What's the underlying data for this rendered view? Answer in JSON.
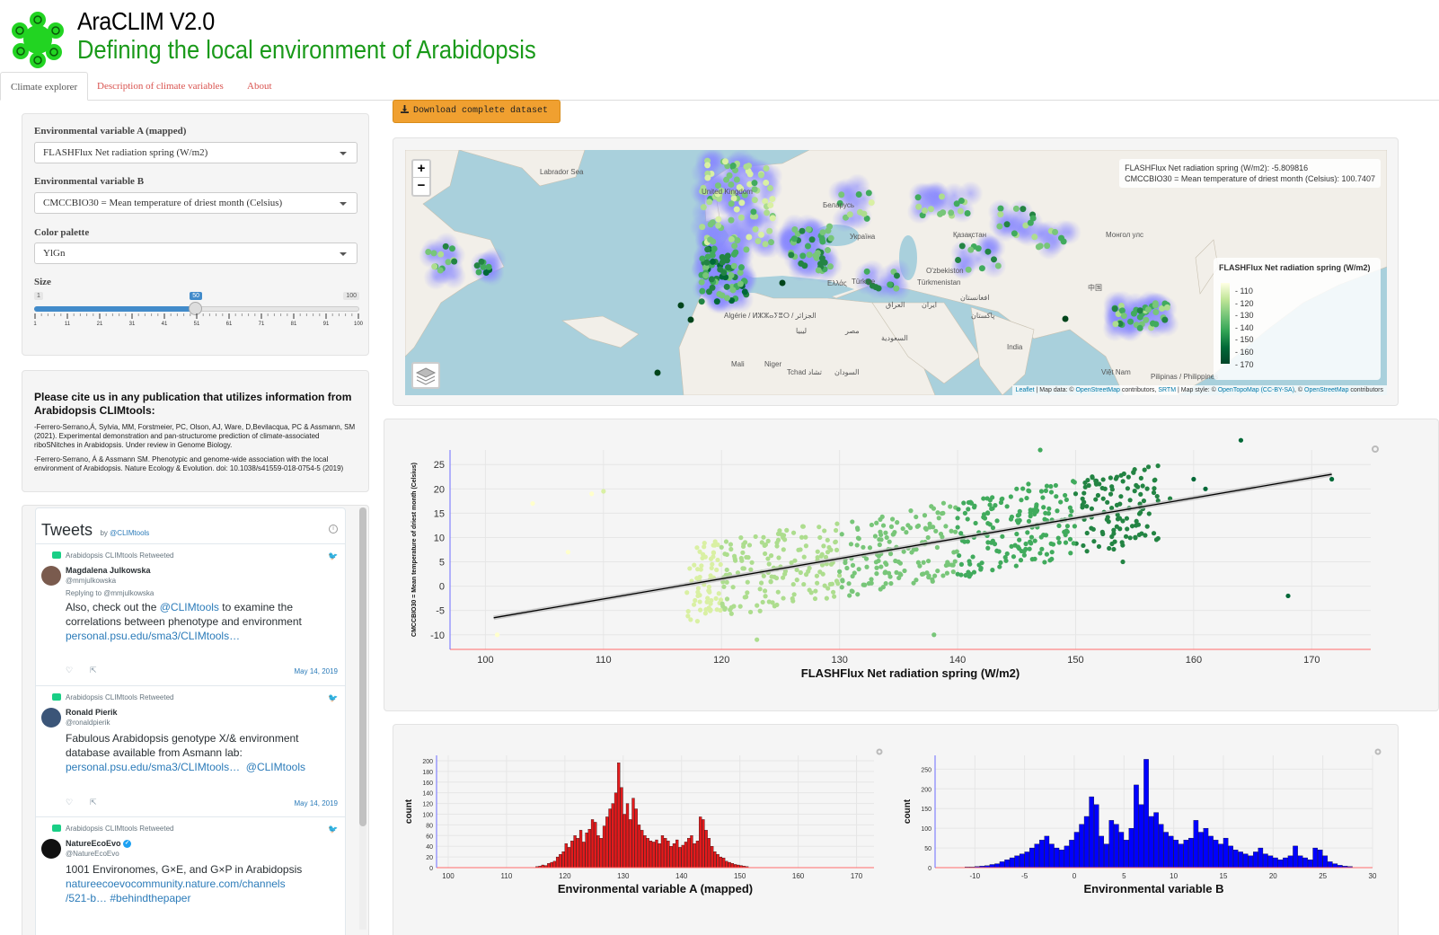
{
  "header": {
    "title": "AraCLIM V2.0",
    "subtitle": "Defining the local environment of Arabidopsis"
  },
  "tabs": [
    {
      "label": "Climate explorer",
      "active": true
    },
    {
      "label": "Description of climate variables",
      "active": false
    },
    {
      "label": "About",
      "active": false
    }
  ],
  "controls": {
    "var_a_label": "Environmental variable A (mapped)",
    "var_a_value": "FLASHFlux Net radiation spring (W/m2)",
    "var_b_label": "Environmental variable B",
    "var_b_value": "CMCCBIO30 = Mean temperature of driest month (Celsius)",
    "palette_label": "Color palette",
    "palette_value": "YlGn",
    "size_label": "Size",
    "size_min": "1",
    "size_max": "100",
    "size_value": "50",
    "size_fraction": 0.495,
    "size_ticks": [
      "1",
      "11",
      "21",
      "31",
      "41",
      "51",
      "61",
      "71",
      "81",
      "91",
      "100"
    ]
  },
  "citation": {
    "title": "Please cite us in any publication that utilizes information from Arabidopsis CLIMtools:",
    "refs": [
      "-Ferrero-Serrano,Á, Sylvia, MM, Forstmeier, PC, Olson, AJ, Ware, D,Bevilacqua, PC & Assmann, SM (2021). Experimental demonstration and pan-structurome prediction of climate-associated riboSNitches in Arabidopsis. Under review in Genome Biology.",
      "-Ferrero-Serrano, Á & Assmann SM. Phenotypic and genome-wide association with the local environment of Arabidopsis. Nature Ecology & Evolution. doi: 10.1038/s41559-018-0754-5 (2019)"
    ]
  },
  "tweets": {
    "title": "Tweets",
    "by": "by",
    "account": "@CLIMtools",
    "items": [
      {
        "retweet": "Arabidopsis CLIMtools Retweeted",
        "name": "Magdalena Julkowska",
        "handle": "@mmjulkowska",
        "reply": "Replying to @mmjulkowska",
        "text_pre": "Also, check out the ",
        "text_link1": "@CLIMtools",
        "text_post": " to examine the correlations between phenotype and environment",
        "link": "personal.psu.edu/sma3/CLIMtools…",
        "date": "May 14, 2019"
      },
      {
        "retweet": "Arabidopsis CLIMtools Retweeted",
        "name": "Ronald Pierik",
        "handle": "@ronaldpierik",
        "text": "Fabulous Arabidopsis genotype X/& environment database available from Asmann lab:",
        "link": "personal.psu.edu/sma3/CLIMtools…",
        "link2": "@CLIMtools",
        "date": "May 14, 2019"
      },
      {
        "retweet": "Arabidopsis CLIMtools Retweeted",
        "name": "NatureEcoEvo",
        "handle": "@NatureEcoEvo",
        "text": "1001 Environomes, G×E, and G×P in Arabidopsis",
        "link": "natureecoevocommunity.nature.com/channels",
        "link_b": "/521-b…",
        "hashtag": "#behindthepaper"
      }
    ]
  },
  "download_label": "Download complete dataset",
  "map": {
    "info_line1": "FLASHFlux Net radiation spring (W/m2): -5.809816",
    "info_line2": "CMCCBIO30 = Mean temperature of driest month (Celsius): 100.7407",
    "legend_title": "FLASHFlux Net radiation spring (W/m2)",
    "legend_ticks": [
      "110",
      "120",
      "130",
      "140",
      "150",
      "160",
      "170"
    ],
    "zoom_in": "+",
    "zoom_out": "−",
    "attrib_leaflet": "Leaflet",
    "attrib_mid1": " | Map data: © ",
    "attrib_osm": "OpenStreetMap",
    "attrib_mid2": " contributors, ",
    "attrib_srtm": "SRTM",
    "attrib_mid3": " | Map style: © ",
    "attrib_otm": "OpenTopoMap",
    "attrib_ccbysa": "(CC-BY-SA)",
    "attrib_mid4": ", © ",
    "attrib_osm2": "OpenStreetMap",
    "attrib_end": " contributors",
    "places": [
      "Беларусь",
      "Україна",
      "Қазақстан",
      "Монгол улс",
      "O'zbekiston",
      "Türkmenistan",
      "Türkiye",
      "Ελλάς",
      "中国",
      "Algérie / ⵍⵣⵣⴰⵢⴻⵔ / الجزائر",
      "Mali",
      "Niger",
      "Tchad تشاد",
      "السودان",
      "السعودية",
      "مصر",
      "ليبيا",
      "العراق",
      "ایران",
      "افغانستان",
      "پاکستان",
      "India",
      "Việt Nam",
      "Pilipinas / Philippines",
      "United Kingdom",
      "Labrador Sea"
    ]
  },
  "chart_data": [
    {
      "type": "scatter",
      "xlabel": "FLASHFlux Net radiation spring (W/m2)",
      "ylabel": "CMCCBIO30 = Mean temperature of driest month (Celsius)",
      "xlim": [
        97,
        175
      ],
      "ylim": [
        -13,
        28
      ],
      "xticks": [
        100,
        110,
        120,
        130,
        140,
        150,
        160,
        170
      ],
      "yticks": [
        -10,
        -5,
        0,
        5,
        10,
        15,
        20,
        25
      ],
      "regression": {
        "x": [
          100.7,
          171.7
        ],
        "y": [
          -6.5,
          23.0
        ]
      },
      "points_sample": [
        [
          101,
          -10
        ],
        [
          104,
          17
        ],
        [
          107,
          7
        ],
        [
          109,
          19
        ],
        [
          110,
          19.5
        ],
        [
          118,
          -2
        ],
        [
          120,
          8
        ],
        [
          122,
          9
        ],
        [
          123,
          -11
        ],
        [
          125,
          4
        ],
        [
          127,
          6
        ],
        [
          129,
          7
        ],
        [
          130,
          3
        ],
        [
          132,
          8
        ],
        [
          134,
          10
        ],
        [
          135,
          5
        ],
        [
          136,
          12
        ],
        [
          137,
          9
        ],
        [
          138,
          -10
        ],
        [
          140,
          14
        ],
        [
          141,
          2
        ],
        [
          143,
          12
        ],
        [
          145,
          20
        ],
        [
          146,
          21
        ],
        [
          147,
          28
        ],
        [
          148,
          7
        ],
        [
          150,
          19
        ],
        [
          152,
          21
        ],
        [
          154,
          5
        ],
        [
          155,
          24
        ],
        [
          158,
          18
        ],
        [
          160,
          22
        ],
        [
          161,
          20
        ],
        [
          164,
          30
        ],
        [
          168,
          -2
        ],
        [
          171.7,
          22
        ]
      ]
    },
    {
      "type": "bar",
      "xlabel": "Environmental variable A (mapped)",
      "ylabel": "count",
      "xlim": [
        98,
        173
      ],
      "ylim": [
        0,
        210
      ],
      "xticks": [
        100,
        110,
        120,
        130,
        140,
        150,
        160,
        170
      ],
      "yticks": [
        0,
        20,
        40,
        60,
        80,
        100,
        120,
        140,
        160,
        180,
        200
      ],
      "color": "#e41a1c",
      "bin_width": 0.5,
      "bin_start": 115,
      "values": [
        2,
        3,
        5,
        4,
        8,
        10,
        12,
        20,
        25,
        30,
        45,
        38,
        50,
        60,
        55,
        70,
        48,
        65,
        72,
        90,
        85,
        60,
        55,
        78,
        95,
        110,
        120,
        140,
        196,
        150,
        100,
        120,
        90,
        130,
        110,
        80,
        70,
        60,
        55,
        50,
        48,
        52,
        45,
        60,
        55,
        50,
        40,
        45,
        52,
        38,
        42,
        48,
        55,
        60,
        45,
        50,
        95,
        90,
        70,
        55,
        40,
        30,
        25,
        20,
        18,
        12,
        10,
        8,
        6,
        5,
        4,
        3,
        2
      ]
    },
    {
      "type": "bar",
      "xlabel": "Environmental variable B",
      "ylabel": "count",
      "xlim": [
        -14,
        30
      ],
      "ylim": [
        0,
        285
      ],
      "xticks": [
        -10,
        -5,
        0,
        5,
        10,
        15,
        20,
        25,
        30
      ],
      "yticks": [
        0,
        50,
        100,
        150,
        200,
        250
      ],
      "color": "#0000ff",
      "bin_width": 0.5,
      "bin_start": -11,
      "values": [
        2,
        2,
        3,
        4,
        5,
        8,
        10,
        15,
        20,
        25,
        30,
        35,
        40,
        50,
        60,
        70,
        80,
        60,
        50,
        45,
        55,
        70,
        90,
        110,
        130,
        180,
        160,
        80,
        60,
        120,
        110,
        90,
        70,
        100,
        210,
        160,
        275,
        130,
        140,
        110,
        90,
        80,
        70,
        60,
        70,
        75,
        120,
        90,
        100,
        80,
        70,
        60,
        75,
        55,
        45,
        40,
        35,
        30,
        40,
        50,
        35,
        30,
        25,
        20,
        25,
        30,
        55,
        30,
        25,
        20,
        50,
        45,
        30,
        15,
        10,
        6,
        4,
        3
      ]
    }
  ]
}
